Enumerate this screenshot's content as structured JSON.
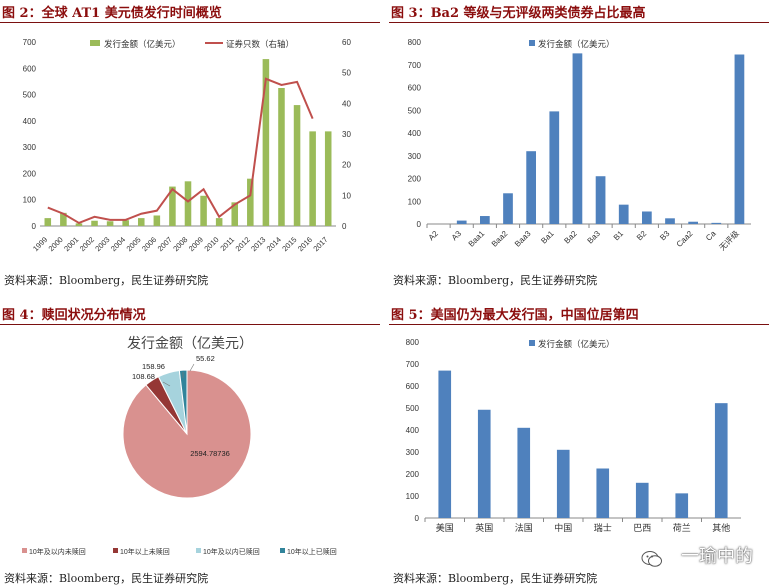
{
  "panels": {
    "p2": {
      "title": "图 2：全球 AT1 美元债发行时间概览"
    },
    "p3": {
      "title": "图 3：Ba2 等级与无评级两类债券占比最高"
    },
    "p4": {
      "title": "图 4：赎回状况分布情况"
    },
    "p5": {
      "title": "图 5：美国仍为最大发行国，中国位居第四"
    }
  },
  "source_text": "资料来源：Bloomberg，民生证券研究院",
  "watermark": "一瑜中的",
  "colors": {
    "green": "#9bbb59",
    "red": "#c0504d",
    "blue": "#4f81bd",
    "title": "#8b0d0d"
  },
  "chart_data": [
    {
      "id": "fig2",
      "type": "bar+line",
      "categories": [
        "1999",
        "2000",
        "2001",
        "2002",
        "2003",
        "2004",
        "2005",
        "2006",
        "2007",
        "2008",
        "2009",
        "2010",
        "2011",
        "2012",
        "2013",
        "2014",
        "2015",
        "2016",
        "2017"
      ],
      "series": [
        {
          "name": "发行金额（亿美元）",
          "type": "bar",
          "axis": "left",
          "values": [
            30,
            50,
            10,
            20,
            18,
            22,
            30,
            40,
            150,
            170,
            115,
            30,
            90,
            180,
            635,
            525,
            460,
            360,
            360
          ]
        },
        {
          "name": "证券只数（右轴）",
          "type": "line",
          "axis": "right",
          "values": [
            6,
            4,
            1,
            3,
            2,
            2,
            4,
            5,
            12,
            8,
            12,
            3,
            7,
            10,
            48,
            46,
            47,
            35,
            null
          ]
        }
      ],
      "left_axis": {
        "min": 0,
        "max": 700,
        "step": 100,
        "ticks": [
          "0",
          "100",
          "200",
          "300",
          "400",
          "500",
          "600",
          "700"
        ]
      },
      "right_axis": {
        "min": 0,
        "max": 60,
        "step": 10,
        "ticks": [
          "0",
          "10",
          "20",
          "30",
          "40",
          "50",
          "60"
        ]
      }
    },
    {
      "id": "fig3",
      "type": "bar",
      "categories": [
        "A2",
        "A3",
        "Baa1",
        "Baa2",
        "Baa3",
        "Ba1",
        "Ba2",
        "Ba3",
        "B1",
        "B2",
        "B3",
        "Caa2",
        "Ca",
        "无评级"
      ],
      "series": [
        {
          "name": "发行金额（亿美元）",
          "values": [
            0,
            15,
            35,
            135,
            320,
            495,
            750,
            210,
            85,
            55,
            25,
            10,
            5,
            745
          ]
        }
      ],
      "y_axis": {
        "min": 0,
        "max": 800,
        "ticks": [
          "0",
          "100",
          "200",
          "300",
          "400",
          "500",
          "600",
          "700",
          "800"
        ]
      }
    },
    {
      "id": "fig4",
      "type": "pie",
      "title": "发行金额（亿美元）",
      "slices": [
        {
          "label": "10年及以内未赎回",
          "value": 2594.78736,
          "display": "2594.78736",
          "color": "#d9918f"
        },
        {
          "label": "10年以上未赎回",
          "value": 108.68,
          "display": "108.68",
          "color": "#953735"
        },
        {
          "label": "10年及以内已赎回",
          "value": 158.96,
          "display": "158.96",
          "color": "#a6d3dd"
        },
        {
          "label": "10年以上已赎回",
          "value": 55.62,
          "display": "55.62",
          "color": "#31849b"
        }
      ]
    },
    {
      "id": "fig5",
      "type": "bar",
      "categories": [
        "美国",
        "英国",
        "法国",
        "中国",
        "瑞士",
        "巴西",
        "荷兰",
        "其他"
      ],
      "series": [
        {
          "name": "发行金额（亿美元）",
          "values": [
            670,
            492,
            410,
            310,
            225,
            160,
            112,
            522
          ]
        }
      ],
      "y_axis": {
        "min": 0,
        "max": 800,
        "ticks": [
          "0",
          "100",
          "200",
          "300",
          "400",
          "500",
          "600",
          "700",
          "800"
        ]
      }
    }
  ]
}
